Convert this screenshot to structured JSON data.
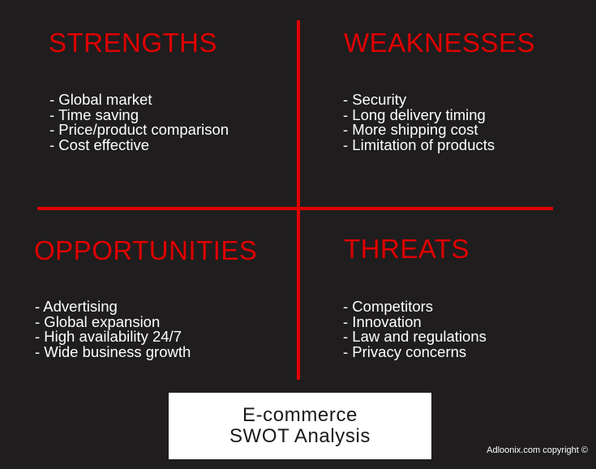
{
  "colors": {
    "background": "#1f1d1e",
    "accent": "#e00000",
    "text": "#ffffff"
  },
  "quadrants": {
    "strengths": {
      "title": "STRENGTHS",
      "items": [
        "- Global market",
        "- Time saving",
        "- Price/product comparison",
        "- Cost effective"
      ]
    },
    "weaknesses": {
      "title": "WEAKNESSES",
      "items": [
        "- Security",
        "- Long delivery timing",
        "- More shipping cost",
        "- Limitation of products"
      ]
    },
    "opportunities": {
      "title": "OPPORTUNITIES",
      "items": [
        "- Advertising",
        "- Global expansion",
        "- High availability 24/7",
        "- Wide business growth"
      ]
    },
    "threats": {
      "title": "THREATS",
      "items": [
        "- Competitors",
        "- Innovation",
        "- Law and regulations",
        "- Privacy concerns"
      ]
    }
  },
  "caption": {
    "line1": "E-commerce",
    "line2": "SWOT Analysis"
  },
  "copyright": "Adloonix.com copyright ©"
}
